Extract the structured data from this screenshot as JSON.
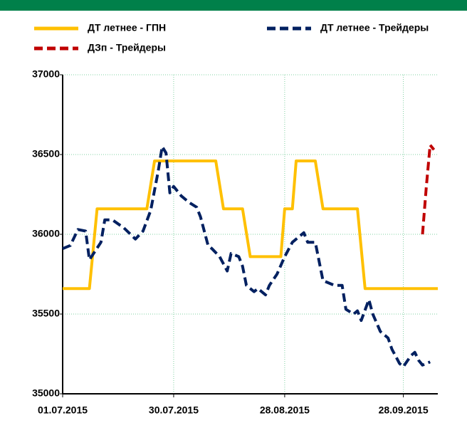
{
  "chart_data": {
    "type": "line",
    "xlim": [
      "2015-07-01",
      "2015-10-07"
    ],
    "xticks": [
      {
        "value": "2015-07-01",
        "label": "01.07.2015"
      },
      {
        "value": "2015-07-30",
        "label": "30.07.2015"
      },
      {
        "value": "2015-08-28",
        "label": "28.08.2015"
      },
      {
        "value": "2015-09-28",
        "label": "28.09.2015"
      }
    ],
    "ylim": [
      35000,
      37000
    ],
    "yticks": [
      35000,
      35500,
      36000,
      36500,
      37000
    ],
    "grid": true,
    "series": [
      {
        "name": "ДТ летнее - ГПН",
        "color": "#ffc000",
        "dash": false,
        "x": [
          "2015-07-01",
          "2015-07-08",
          "2015-07-10",
          "2015-07-23",
          "2015-07-25",
          "2015-08-10",
          "2015-08-12",
          "2015-08-17",
          "2015-08-19",
          "2015-08-27",
          "2015-08-28",
          "2015-08-30",
          "2015-08-31",
          "2015-09-05",
          "2015-09-07",
          "2015-09-16",
          "2015-09-18",
          "2015-10-07"
        ],
        "values": [
          35660,
          35660,
          36160,
          36160,
          36460,
          36460,
          36160,
          36160,
          35860,
          35860,
          36160,
          36160,
          36460,
          36460,
          36160,
          36160,
          35660,
          35660
        ]
      },
      {
        "name": "ДТ летнее - Трейдеры",
        "color": "#002060",
        "dash": true,
        "x": [
          "2015-07-01",
          "2015-07-03",
          "2015-07-05",
          "2015-07-07",
          "2015-07-08",
          "2015-07-11",
          "2015-07-12",
          "2015-07-14",
          "2015-07-17",
          "2015-07-20",
          "2015-07-22",
          "2015-07-24",
          "2015-07-26",
          "2015-07-27",
          "2015-07-28",
          "2015-07-29",
          "2015-07-30",
          "2015-08-01",
          "2015-08-03",
          "2015-08-05",
          "2015-08-06",
          "2015-08-08",
          "2015-08-09",
          "2015-08-11",
          "2015-08-13",
          "2015-08-14",
          "2015-08-16",
          "2015-08-17",
          "2015-08-18",
          "2015-08-20",
          "2015-08-21",
          "2015-08-23",
          "2015-08-24",
          "2015-08-26",
          "2015-08-28",
          "2015-08-30",
          "2015-09-02",
          "2015-09-03",
          "2015-09-05",
          "2015-09-07",
          "2015-09-10",
          "2015-09-12",
          "2015-09-13",
          "2015-09-15",
          "2015-09-16",
          "2015-09-17",
          "2015-09-19",
          "2015-09-20",
          "2015-09-22",
          "2015-09-24",
          "2015-09-25",
          "2015-09-27",
          "2015-09-28",
          "2015-09-30",
          "2015-10-01",
          "2015-10-02",
          "2015-10-03",
          "2015-10-05"
        ],
        "values": [
          35910,
          35930,
          36030,
          36020,
          35840,
          35950,
          36090,
          36090,
          36040,
          35970,
          36020,
          36150,
          36400,
          36550,
          36510,
          36260,
          36300,
          36240,
          36200,
          36170,
          36110,
          35930,
          35910,
          35860,
          35770,
          35880,
          35860,
          35800,
          35680,
          35640,
          35660,
          35620,
          35680,
          35750,
          35860,
          35950,
          36010,
          35950,
          35950,
          35710,
          35680,
          35680,
          35530,
          35500,
          35520,
          35460,
          35590,
          35500,
          35390,
          35350,
          35280,
          35190,
          35170,
          35240,
          35260,
          35210,
          35180,
          35200
        ]
      },
      {
        "name": "ДЗп - Трейдеры",
        "color": "#c00000",
        "dash": true,
        "x": [
          "2015-10-03",
          "2015-10-04",
          "2015-10-05",
          "2015-10-06"
        ],
        "values": [
          36000,
          36300,
          36560,
          36530
        ]
      }
    ]
  }
}
